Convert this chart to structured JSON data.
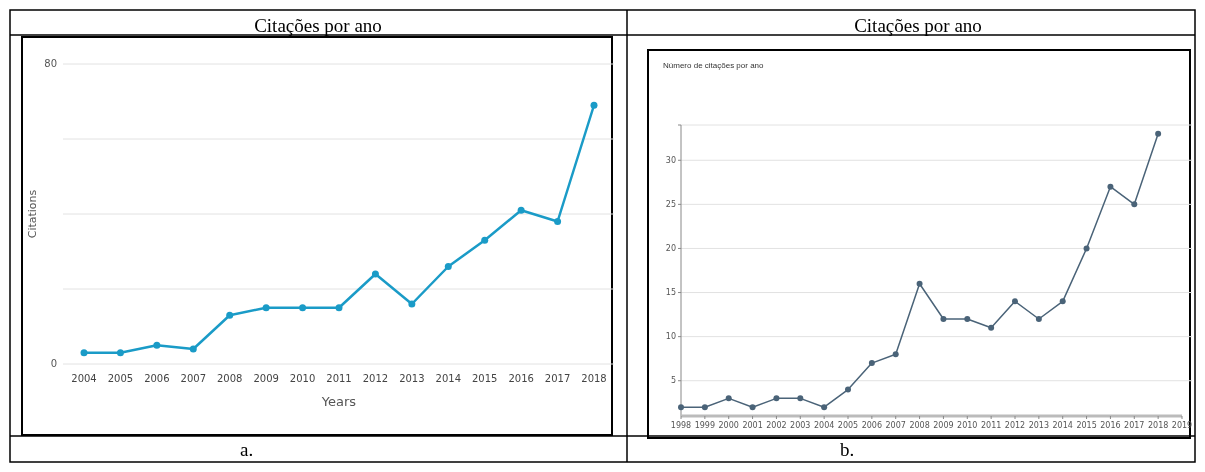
{
  "chart_data": [
    {
      "type": "line",
      "title": "Citações por ano",
      "xlabel": "Years",
      "ylabel": "Citations",
      "categories": [
        "2004",
        "2005",
        "2006",
        "2007",
        "2008",
        "2009",
        "2010",
        "2011",
        "2012",
        "2013",
        "2014",
        "2015",
        "2016",
        "2017",
        "2018"
      ],
      "series": [
        {
          "color": "#1a9bc7",
          "values": [
            3,
            3,
            5,
            4,
            13,
            15,
            15,
            15,
            24,
            16,
            26,
            33,
            41,
            38,
            69
          ]
        }
      ],
      "ylim": [
        0,
        80
      ],
      "yticks": [
        0,
        {
          "value": 20,
          "label": null
        },
        {
          "value": 40,
          "label": null
        },
        {
          "value": 60,
          "label": null
        },
        80
      ],
      "grid": "y",
      "marker": "circle",
      "annotations": [
        "a."
      ]
    },
    {
      "type": "line",
      "title": "Citações por ano",
      "subtitle": "Número de citações por ano",
      "x": [
        1998,
        1999,
        2000,
        2001,
        2002,
        2003,
        2004,
        2005,
        2006,
        2007,
        2008,
        2009,
        2010,
        2011,
        2012,
        2013,
        2014,
        2015,
        2016,
        2017,
        2018
      ],
      "series": [
        {
          "color": "#4a6378",
          "values": [
            2,
            2,
            3,
            2,
            3,
            3,
            2,
            4,
            7,
            8,
            16,
            12,
            12,
            11,
            14,
            12,
            14,
            20,
            27,
            25,
            33
          ]
        }
      ],
      "xlim": [
        1998,
        2019
      ],
      "xticks": [
        1998,
        1999,
        2000,
        2001,
        2002,
        2003,
        2004,
        2005,
        2006,
        2007,
        2008,
        2009,
        2010,
        2011,
        2012,
        2013,
        2014,
        2015,
        2016,
        2017,
        2018,
        2019
      ],
      "ylim": [
        1,
        34
      ],
      "yticks": [
        5,
        10,
        15,
        20,
        25,
        30,
        {
          "value": 34,
          "label": null
        }
      ],
      "grid": "y",
      "marker": "circle",
      "annotations": [
        "b."
      ]
    }
  ]
}
